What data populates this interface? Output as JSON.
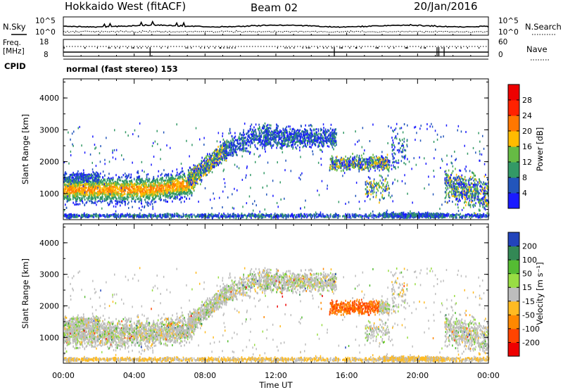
{
  "header": {
    "station": "Hokkaido West (fitACF)",
    "beam": "Beam 02",
    "date": "20/Jan/2016"
  },
  "top_panel": {
    "left_label": "N.Sky",
    "right_label": "N.Search",
    "left_ticks": [
      "10^5",
      "10^0"
    ],
    "right_ticks": [
      "10^5",
      "10^0"
    ]
  },
  "freq_panel": {
    "left_label_1": "Freq.",
    "left_label_2": "[MHz]",
    "left_ticks": [
      "18",
      "8"
    ],
    "right_label": "Nave",
    "right_ticks": [
      "60",
      "0"
    ]
  },
  "cpid": {
    "label": "CPID",
    "value": "normal (fast stereo) 153"
  },
  "chart_data": [
    {
      "type": "heatmap",
      "name": "power",
      "ylabel": "Slant Range [km]",
      "xlabel": "",
      "ylim": [
        180,
        4600
      ],
      "xlim_hours": [
        0,
        24
      ],
      "yticks": [
        "1000",
        "2000",
        "3000",
        "4000"
      ],
      "colorbar_label": "Power [dB]",
      "colorbar_ticks": [
        "4",
        "8",
        "12",
        "16",
        "20",
        "24",
        "28"
      ],
      "colors": [
        "#1a1aff",
        "#2255bb",
        "#339966",
        "#66bb44",
        "#ffbb00",
        "#ff7700",
        "#ff2200",
        "#ee0000"
      ]
    },
    {
      "type": "heatmap",
      "name": "velocity",
      "ylabel": "Slant Range [km]",
      "xlabel": "Time UT",
      "ylim": [
        180,
        4600
      ],
      "xlim_hours": [
        0,
        24
      ],
      "yticks": [
        "1000",
        "2000",
        "3000",
        "4000"
      ],
      "xticks": [
        "00:00",
        "04:00",
        "08:00",
        "12:00",
        "16:00",
        "20:00",
        "00:00"
      ],
      "colorbar_label": "Velocity [m s⁻¹]",
      "colorbar_ticks": [
        "200",
        "100",
        "50",
        "15",
        "-15",
        "-50",
        "-100",
        "-200"
      ],
      "colors": [
        "#2244bb",
        "#338855",
        "#55bb33",
        "#99dd44",
        "#bdbdbd",
        "#ffbb22",
        "#ff8800",
        "#ff4400",
        "#ee0000"
      ]
    }
  ]
}
